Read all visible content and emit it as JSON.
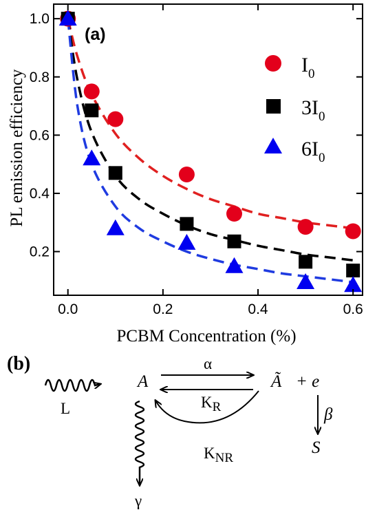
{
  "chart_data": {
    "type": "scatter",
    "panel_label": "(a)",
    "xlabel": "PCBM Concentration (%)",
    "ylabel": "PL emission efficiency",
    "xlim": [
      -0.03,
      0.62
    ],
    "ylim": [
      0.05,
      1.05
    ],
    "xticks": [
      "0.0",
      "0.2",
      "0.4",
      "0.6"
    ],
    "yticks": [
      "0.2",
      "0.4",
      "0.6",
      "0.8",
      "1.0"
    ],
    "legend_position": "right",
    "series": [
      {
        "name": "I",
        "name_sub": "0",
        "marker": "circle",
        "color": "#e3001b",
        "fit_color": "#e02020",
        "x": [
          0.0,
          0.05,
          0.1,
          0.25,
          0.35,
          0.5,
          0.6
        ],
        "y": [
          1.0,
          0.75,
          0.655,
          0.465,
          0.33,
          0.285,
          0.27
        ],
        "fit": {
          "x": [
            0.0,
            0.02,
            0.05,
            0.1,
            0.15,
            0.2,
            0.25,
            0.3,
            0.35,
            0.4,
            0.45,
            0.5,
            0.55,
            0.6
          ],
          "y": [
            1.0,
            0.87,
            0.74,
            0.605,
            0.52,
            0.46,
            0.415,
            0.38,
            0.355,
            0.33,
            0.315,
            0.3,
            0.29,
            0.28
          ]
        }
      },
      {
        "name": "3I",
        "name_sub": "0",
        "marker": "square",
        "color": "#000000",
        "fit_color": "#000000",
        "x": [
          0.0,
          0.05,
          0.1,
          0.25,
          0.35,
          0.5,
          0.6
        ],
        "y": [
          1.0,
          0.685,
          0.47,
          0.295,
          0.235,
          0.165,
          0.135
        ],
        "fit": {
          "x": [
            0.0,
            0.02,
            0.05,
            0.1,
            0.15,
            0.2,
            0.25,
            0.3,
            0.35,
            0.4,
            0.45,
            0.5,
            0.55,
            0.6
          ],
          "y": [
            1.0,
            0.79,
            0.61,
            0.46,
            0.38,
            0.33,
            0.29,
            0.26,
            0.24,
            0.22,
            0.205,
            0.19,
            0.18,
            0.17
          ]
        }
      },
      {
        "name": "6I",
        "name_sub": "0",
        "marker": "triangle",
        "color": "#0000f0",
        "fit_color": "#1f3be0",
        "x": [
          0.0,
          0.05,
          0.1,
          0.25,
          0.35,
          0.5,
          0.6
        ],
        "y": [
          1.0,
          0.52,
          0.28,
          0.23,
          0.15,
          0.095,
          0.085
        ],
        "fit": {
          "x": [
            0.0,
            0.02,
            0.05,
            0.1,
            0.15,
            0.2,
            0.25,
            0.3,
            0.35,
            0.4,
            0.45,
            0.5,
            0.55,
            0.6
          ],
          "y": [
            1.0,
            0.7,
            0.5,
            0.355,
            0.28,
            0.235,
            0.2,
            0.175,
            0.155,
            0.14,
            0.125,
            0.115,
            0.105,
            0.095
          ]
        }
      }
    ]
  },
  "diagram": {
    "panel_label": "(b)",
    "L": "L",
    "A": "A",
    "alpha": "α",
    "KR": "K",
    "KR_sub": "R",
    "A_tilde": "Ã",
    "plus_e": "+ e",
    "beta": "β",
    "S": "S",
    "KNR": "K",
    "KNR_sub": "NR",
    "gamma": "γ"
  }
}
